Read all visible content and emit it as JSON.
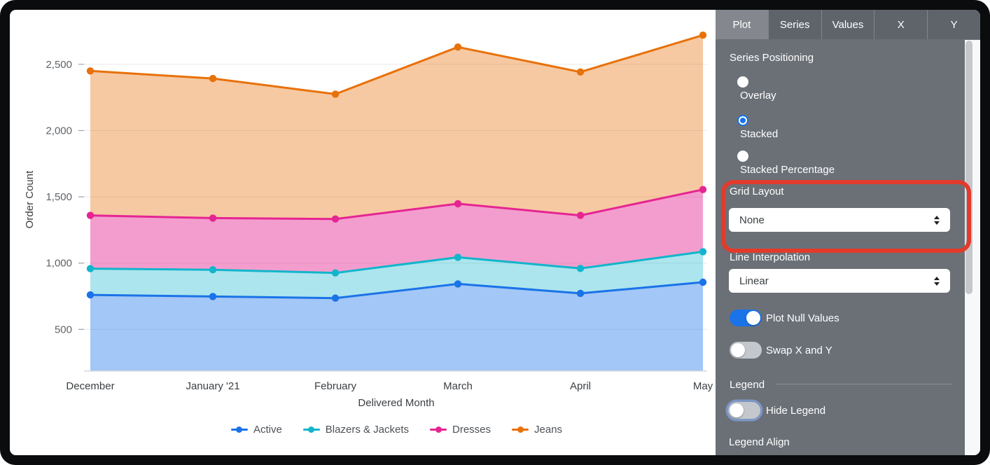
{
  "panel": {
    "tabs": [
      {
        "label": "Plot",
        "active": true
      },
      {
        "label": "Series",
        "active": false
      },
      {
        "label": "Values",
        "active": false
      },
      {
        "label": "X",
        "active": false
      },
      {
        "label": "Y",
        "active": false
      }
    ],
    "series_positioning": {
      "label": "Series Positioning",
      "options": [
        {
          "label": "Overlay",
          "selected": false
        },
        {
          "label": "Stacked",
          "selected": true
        },
        {
          "label": "Stacked Percentage",
          "selected": false
        }
      ]
    },
    "grid_layout": {
      "label": "Grid Layout",
      "value": "None"
    },
    "line_interpolation": {
      "label": "Line Interpolation",
      "value": "Linear"
    },
    "toggles": {
      "plot_null_values": {
        "label": "Plot Null Values",
        "on": true,
        "focused": false
      },
      "swap_x_y": {
        "label": "Swap X and Y",
        "on": false,
        "focused": false
      },
      "hide_legend": {
        "label": "Hide Legend",
        "on": false,
        "focused": true
      }
    },
    "legend_section": {
      "label": "Legend"
    },
    "legend_align": {
      "label": "Legend Align"
    },
    "accent_color": "#1a73e8"
  },
  "annotation": {
    "description": "red rounded highlight around Grid Layout control",
    "color": "#e23b2c"
  },
  "chart_data": {
    "type": "area",
    "stacked": true,
    "title": "",
    "xlabel": "Delivered Month",
    "ylabel": "Order Count",
    "x": [
      "December",
      "January '21",
      "February",
      "March",
      "April",
      "May"
    ],
    "yticks": [
      500,
      1000,
      1500,
      2000,
      2500
    ],
    "ylim": [
      190,
      2890
    ],
    "grid": true,
    "legend_position": "bottom",
    "series": [
      {
        "name": "Active",
        "color": "#1a73e8",
        "fill": "rgba(26,115,232,0.40)",
        "values": [
          760,
          748,
          736,
          843,
          772,
          856
        ],
        "cumulative": [
          760,
          748,
          736,
          843,
          772,
          856
        ]
      },
      {
        "name": "Blazers & Jackets",
        "color": "#12b5cb",
        "fill": "rgba(18,181,203,0.35)",
        "values": [
          198,
          202,
          190,
          201,
          188,
          230
        ],
        "cumulative": [
          958,
          950,
          926,
          1044,
          960,
          1086
        ]
      },
      {
        "name": "Dresses",
        "color": "#e52592",
        "fill": "rgba(229,37,146,0.45)",
        "values": [
          402,
          390,
          407,
          404,
          400,
          469
        ],
        "cumulative": [
          1360,
          1340,
          1333,
          1448,
          1360,
          1555
        ]
      },
      {
        "name": "Jeans",
        "color": "#e8710a",
        "fill": "rgba(232,113,10,0.38)",
        "values": [
          1090,
          1053,
          942,
          1182,
          1082,
          1165
        ],
        "cumulative": [
          2450,
          2393,
          2275,
          2630,
          2442,
          2720
        ]
      }
    ]
  }
}
